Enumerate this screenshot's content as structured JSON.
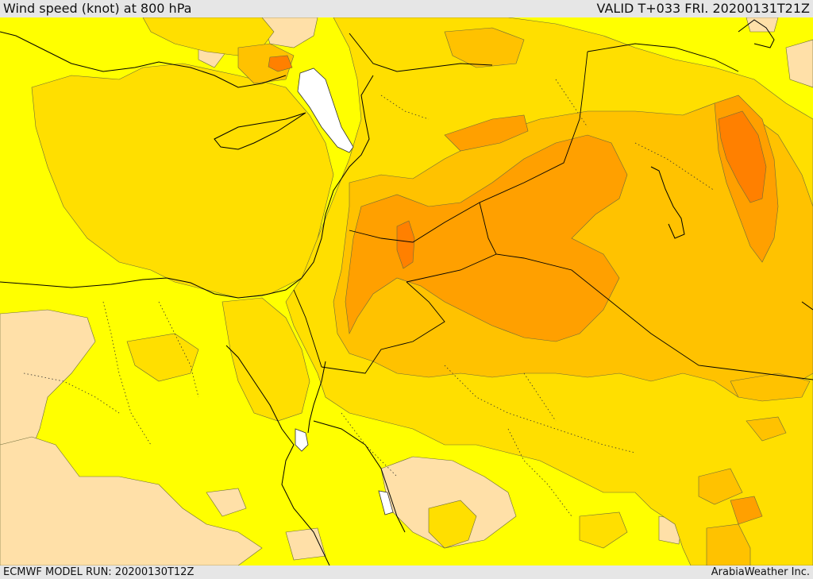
{
  "header": {
    "title": "Wind speed (knot) at 800 hPa",
    "valid": "VALID T+033 FRI. 20200131T21Z"
  },
  "footer": {
    "model_run": "ECMWF MODEL RUN: 20200130T12Z",
    "credit": "ArabiaWeather Inc."
  },
  "colors": {
    "level_1": "#ffff00",
    "level_2": "#ffdf00",
    "level_3": "#ffc200",
    "level_4": "#ffa000",
    "level_5": "#ff8000",
    "calm": "#ffe0a8",
    "water_void": "#ffffff",
    "outline": "#444444",
    "border": "#000000"
  }
}
